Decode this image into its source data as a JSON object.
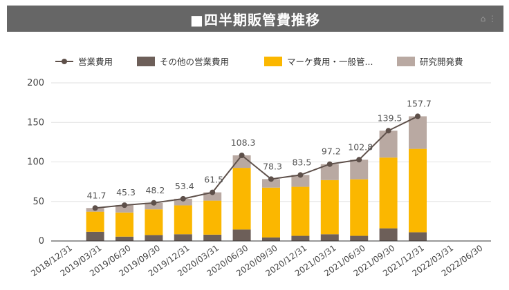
{
  "header": {
    "title": "■四半期販管費推移"
  },
  "colors": {
    "header_bg": "#666666",
    "other_opex": "#6d5f59",
    "marketing": "#fbb700",
    "rnd": "#b9a9a2",
    "line": "#5e504a"
  },
  "chart_data": {
    "type": "bar",
    "stacked": true,
    "title": "■四半期販管費推移",
    "categories": [
      "2018/12/31",
      "2019/03/31",
      "2019/06/30",
      "2019/09/30",
      "2019/12/31",
      "2020/03/31",
      "2020/06/30",
      "2020/09/30",
      "2020/12/31",
      "2021/03/31",
      "2021/06/30",
      "2021/09/30",
      "2021/12/31",
      "2022/03/31",
      "2022/06/30"
    ],
    "series": [
      {
        "name": "その他の営業費用",
        "kind": "bar",
        "color": "#6d5f59",
        "values": [
          null,
          11.5,
          5.5,
          7.5,
          8.5,
          8,
          14.5,
          4.5,
          6.5,
          8.5,
          6.5,
          16,
          11,
          null,
          null
        ]
      },
      {
        "name": "マーケ費用・一般管...",
        "kind": "bar",
        "color": "#fbb700",
        "values": [
          null,
          25.5,
          30.5,
          32.5,
          36.5,
          43,
          78,
          63,
          62,
          68.5,
          71.5,
          89.5,
          105.5,
          null,
          null
        ]
      },
      {
        "name": "研究開発費",
        "kind": "bar",
        "color": "#b9a9a2",
        "values": [
          null,
          4.7,
          9.3,
          8.2,
          8.4,
          10.5,
          15.8,
          10.8,
          15,
          20.2,
          24.8,
          34,
          41.2,
          null,
          null
        ]
      },
      {
        "name": "営業費用",
        "kind": "line",
        "color": "#5e504a",
        "values": [
          null,
          41.7,
          45.3,
          48.2,
          53.4,
          61.5,
          108.3,
          78.3,
          83.5,
          97.2,
          102.8,
          139.5,
          157.7,
          null,
          null
        ],
        "labels": [
          "",
          "41.7",
          "45.3",
          "48.2",
          "53.4",
          "61.5",
          "108.3",
          "78.3",
          "83.5",
          "97.2",
          "102.8",
          "139.5",
          "157.7",
          "",
          ""
        ]
      }
    ],
    "ylim": [
      0,
      200
    ],
    "yticks": [
      0,
      50,
      100,
      150,
      200
    ],
    "ytick_labels": [
      "0",
      "50",
      "100",
      "150",
      "200"
    ],
    "grid": true,
    "legend_position": "top",
    "xlabel": "",
    "ylabel": ""
  }
}
